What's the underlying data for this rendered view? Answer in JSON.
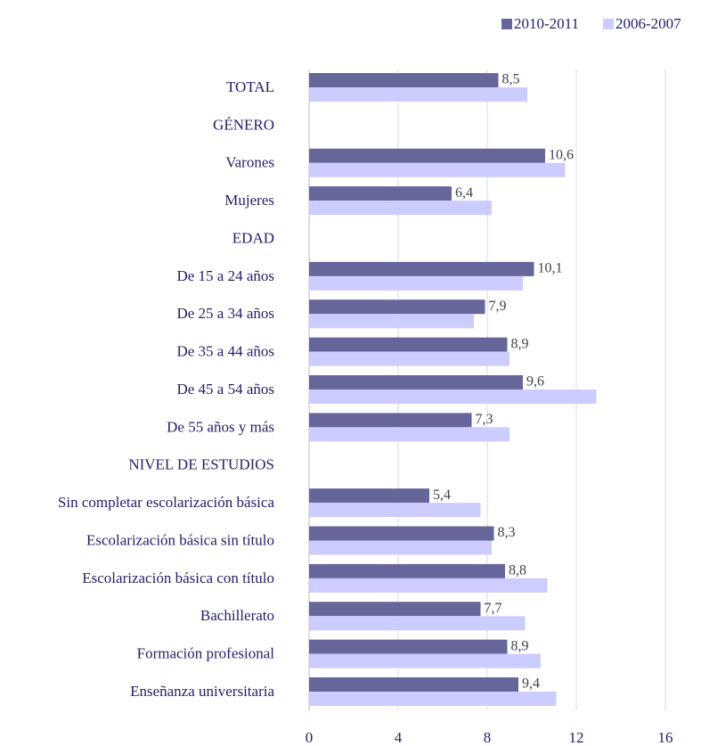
{
  "chart_data": {
    "type": "hbar",
    "categories": [
      "TOTAL",
      "GÉNERO",
      "Varones",
      "Mujeres",
      "EDAD",
      "De 15 a 24 años",
      "De 25 a 34 años",
      "De 35 a 44 años",
      "De 45 a 54 años",
      "De 55 años y más",
      "NIVEL DE ESTUDIOS",
      "Sin completar escolarización básica",
      "Escolarización básica sin título",
      "Escolarización básica con título",
      "Bachillerato",
      "Formación profesional",
      "Enseñanza universitaria"
    ],
    "series": [
      {
        "name": "2010-2011",
        "color": "#66669a",
        "values": [
          8.5,
          null,
          10.6,
          6.4,
          null,
          10.1,
          7.9,
          8.9,
          9.6,
          7.3,
          null,
          5.4,
          8.3,
          8.8,
          7.7,
          8.9,
          9.4
        ],
        "value_labels": [
          "8,5",
          null,
          "10,6",
          "6,4",
          null,
          "10,1",
          "7,9",
          "8,9",
          "9,6",
          "7,3",
          null,
          "5,4",
          "8,3",
          "8,8",
          "7,7",
          "8,9",
          "9,4"
        ]
      },
      {
        "name": "2006-2007",
        "color": "#ccccff",
        "values": [
          9.8,
          null,
          11.5,
          8.2,
          null,
          9.6,
          7.4,
          9.0,
          12.9,
          9.0,
          null,
          7.7,
          8.2,
          10.7,
          9.7,
          10.4,
          11.1
        ]
      }
    ],
    "xlim": [
      0,
      16
    ],
    "xticks": [
      0,
      4,
      8,
      12,
      16
    ],
    "grid": true,
    "legend": "top-right"
  }
}
